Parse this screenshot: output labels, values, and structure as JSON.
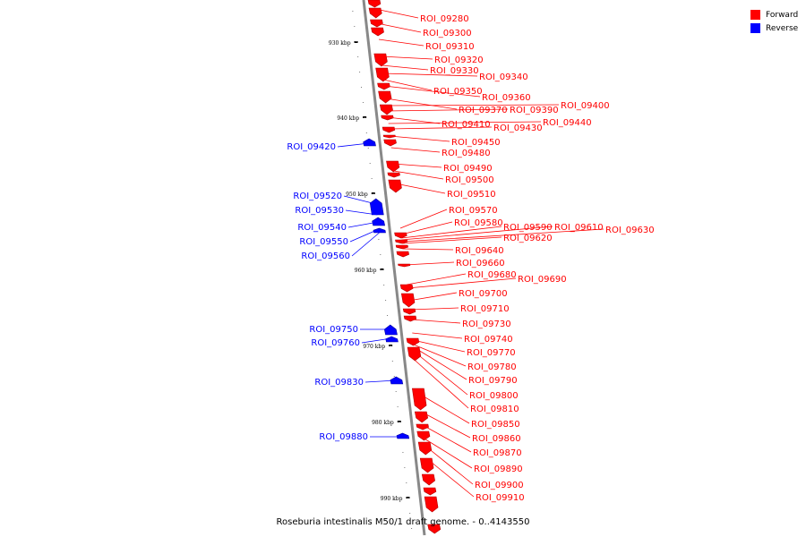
{
  "legend": [
    {
      "label": "Forward",
      "color": "#ff0000"
    },
    {
      "label": "Reverse",
      "color": "#0000ff"
    }
  ],
  "caption": "Roseburia intestinalis M50/1 draft genome. - 0..4143550",
  "colors": {
    "forward": "#ff0000",
    "reverse": "#0000ff",
    "axis": "#888888"
  },
  "ticks": [
    "930 kbp",
    "940 kbp",
    "950 kbp",
    "960 kbp",
    "970 kbp",
    "980 kbp",
    "990 kbp"
  ],
  "forward_labels": [
    "ROI_09280",
    "ROI_09300",
    "ROI_09310",
    "ROI_09320",
    "ROI_09330",
    "ROI_09340",
    "ROI_09350",
    "ROI_09360",
    "ROI_09370",
    "ROI_09390",
    "ROI_09400",
    "ROI_09410",
    "ROI_09430",
    "ROI_09440",
    "ROI_09450",
    "ROI_09480",
    "ROI_09490",
    "ROI_09500",
    "ROI_09510",
    "ROI_09570",
    "ROI_09580",
    "ROI_09590",
    "ROI_09610",
    "ROI_09630",
    "ROI_09620",
    "ROI_09640",
    "ROI_09660",
    "ROI_09680",
    "ROI_09690",
    "ROI_09700",
    "ROI_09710",
    "ROI_09730",
    "ROI_09740",
    "ROI_09770",
    "ROI_09780",
    "ROI_09790",
    "ROI_09800",
    "ROI_09810",
    "ROI_09850",
    "ROI_09860",
    "ROI_09870",
    "ROI_09890",
    "ROI_09900",
    "ROI_09910"
  ],
  "reverse_labels": [
    "ROI_09420",
    "ROI_09520",
    "ROI_09530",
    "ROI_09540",
    "ROI_09550",
    "ROI_09560",
    "ROI_09750",
    "ROI_09760",
    "ROI_09830",
    "ROI_09880"
  ]
}
